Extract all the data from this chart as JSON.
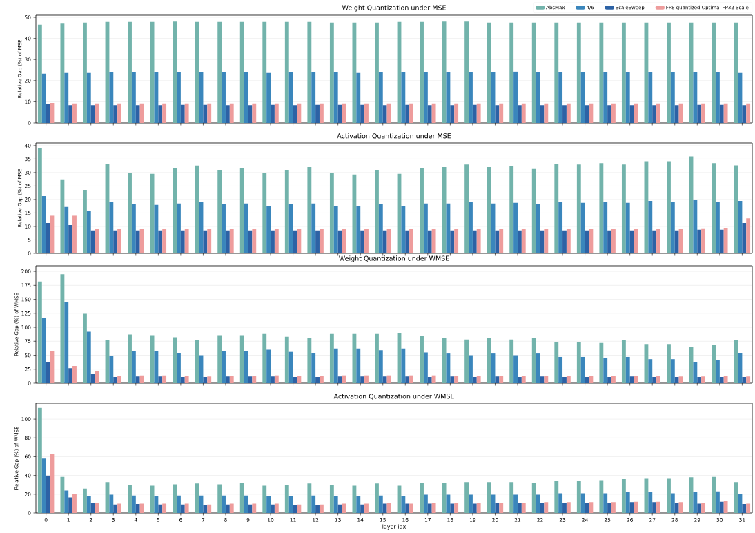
{
  "chart_data": [
    {
      "type": "bar",
      "title": "Weight Quantization under MSE",
      "ylabel": "Relative Gap (%) of MSE",
      "categories": [
        "0",
        "1",
        "2",
        "3",
        "4",
        "5",
        "6",
        "7",
        "8",
        "9",
        "10",
        "11",
        "12",
        "13",
        "14",
        "15",
        "16",
        "17",
        "18",
        "19",
        "20",
        "21",
        "22",
        "23",
        "24",
        "25",
        "26",
        "27",
        "28",
        "29",
        "30",
        "31"
      ],
      "ylim": [
        0,
        51
      ],
      "yticks": [
        0,
        10,
        20,
        30,
        40,
        50
      ],
      "grid": "y",
      "legend": "top right",
      "tick_labels": "y",
      "series": [
        {
          "name": "AbsMax",
          "color": "#72b3ab",
          "values": [
            46.5,
            47,
            47.5,
            47.8,
            47.8,
            47.8,
            48,
            47.8,
            47.8,
            47.8,
            47.8,
            47.8,
            47.8,
            47.5,
            47.5,
            47.5,
            47.8,
            47.8,
            48,
            48,
            47.5,
            47.5,
            47.5,
            47.5,
            47.5,
            47.5,
            47.5,
            47.5,
            47.5,
            47.5,
            47.5,
            47.5
          ]
        },
        {
          "name": "4/6",
          "color": "#3a86bc",
          "values": [
            23.3,
            23.6,
            23.6,
            24,
            24,
            24,
            24,
            24,
            24,
            24,
            23.6,
            24,
            24,
            24,
            23.6,
            24,
            24,
            24,
            24,
            24,
            24,
            24.3,
            24,
            24,
            24,
            24,
            24,
            24,
            24,
            24,
            24,
            23.6
          ]
        },
        {
          "name": "ScaleSweep",
          "color": "#2d62a5",
          "values": [
            9,
            8.4,
            8.4,
            8.4,
            8.4,
            8.4,
            8.6,
            8.6,
            8.4,
            8.4,
            8.6,
            8.4,
            8.6,
            8.6,
            8.6,
            8.4,
            8.6,
            8.4,
            8.4,
            8.6,
            8.4,
            8.4,
            8.4,
            8.4,
            8.4,
            8.4,
            8.4,
            8.4,
            8.4,
            8.6,
            8.6,
            8.4
          ]
        },
        {
          "name": "FP8 quantized Optimal FP32 Scale",
          "color": "#ee9c9c",
          "values": [
            9.5,
            9.2,
            9.2,
            9.2,
            9.2,
            9.2,
            9.2,
            9.2,
            9.2,
            9.2,
            9.2,
            9.2,
            9.2,
            9.2,
            9.2,
            9.2,
            9.2,
            9.2,
            9.2,
            9.2,
            9.2,
            9.2,
            9.2,
            9.2,
            9.2,
            9.2,
            9.2,
            9.2,
            9.2,
            9.2,
            9.2,
            9.2
          ]
        }
      ]
    },
    {
      "type": "bar",
      "title": "Activation Quantization under MSE",
      "ylabel": "Relative Gap (%) of MSE",
      "categories": [
        "0",
        "1",
        "2",
        "3",
        "4",
        "5",
        "6",
        "7",
        "8",
        "9",
        "10",
        "11",
        "12",
        "13",
        "14",
        "15",
        "16",
        "17",
        "18",
        "19",
        "20",
        "21",
        "22",
        "23",
        "24",
        "25",
        "26",
        "27",
        "28",
        "29",
        "30",
        "31"
      ],
      "ylim": [
        0,
        41
      ],
      "yticks": [
        0,
        5,
        10,
        15,
        20,
        25,
        30,
        35,
        40
      ],
      "grid": "y",
      "tick_labels": "y",
      "series": [
        {
          "color": "#72b3ab",
          "values": [
            39,
            27.5,
            23.6,
            33.1,
            30,
            29.5,
            31.5,
            32.6,
            31,
            31.8,
            29.8,
            31,
            32,
            30,
            29.3,
            31,
            29.5,
            31.5,
            32,
            33,
            32,
            32.5,
            31.3,
            33.2,
            33,
            33.5,
            33,
            34.2,
            34.2,
            36,
            33.5,
            32.7
          ]
        },
        {
          "color": "#3a86bc",
          "values": [
            21.3,
            17.2,
            15.9,
            19.2,
            18.2,
            18,
            18.5,
            19,
            18.2,
            18.5,
            17.7,
            18.2,
            18.5,
            17.7,
            17.4,
            18.2,
            17.4,
            18.5,
            18.5,
            19,
            18.5,
            18.8,
            18.3,
            19,
            18.8,
            19,
            18.8,
            19.5,
            19.2,
            20,
            19.2,
            19.5
          ]
        },
        {
          "color": "#2d62a5",
          "values": [
            11.3,
            10.5,
            8.5,
            8.5,
            8.5,
            8.5,
            8.5,
            8.5,
            8.5,
            8.5,
            8.5,
            8.5,
            8.5,
            8.5,
            8.5,
            8.5,
            8.5,
            8.5,
            8.5,
            8.5,
            8.5,
            8.5,
            8.5,
            8.5,
            8.5,
            8.5,
            8.5,
            8.5,
            8.5,
            8.8,
            8.8,
            11.3
          ]
        },
        {
          "color": "#ee9c9c",
          "values": [
            14,
            14,
            9,
            9,
            9,
            9,
            9,
            9,
            9,
            9,
            9,
            9,
            9,
            9,
            9,
            9,
            9,
            9,
            9,
            9,
            9,
            9,
            9,
            9,
            9,
            9,
            9,
            9.2,
            9,
            9.3,
            9.5,
            13
          ]
        }
      ]
    },
    {
      "type": "bar",
      "title": "Weight Quantization under WMSE",
      "ylabel": "Relative Gap (%) of WMSE",
      "categories": [
        "0",
        "1",
        "2",
        "3",
        "4",
        "5",
        "6",
        "7",
        "8",
        "9",
        "10",
        "11",
        "12",
        "13",
        "14",
        "15",
        "16",
        "17",
        "18",
        "19",
        "20",
        "21",
        "22",
        "23",
        "24",
        "25",
        "26",
        "27",
        "28",
        "29",
        "30",
        "31"
      ],
      "ylim": [
        0,
        210
      ],
      "yticks": [
        0,
        25,
        50,
        75,
        100,
        125,
        150,
        175,
        200
      ],
      "grid": "y",
      "tick_labels": "y",
      "series": [
        {
          "color": "#72b3ab",
          "values": [
            182,
            195,
            124,
            77,
            87,
            86,
            82,
            77,
            86,
            86,
            88,
            83,
            81,
            88,
            88,
            88,
            90,
            85,
            81,
            78,
            81,
            78,
            81,
            74,
            74,
            72,
            77,
            70,
            70,
            65,
            69,
            77
          ]
        },
        {
          "color": "#3a86bc",
          "values": [
            117,
            145,
            92,
            49,
            58,
            58,
            54,
            50,
            58,
            57,
            60,
            56,
            54,
            62,
            62,
            59,
            62,
            55,
            53,
            50,
            53,
            50,
            53,
            47,
            47,
            45,
            47,
            43,
            43,
            38,
            42,
            54
          ]
        },
        {
          "color": "#2d62a5",
          "values": [
            38,
            27,
            16,
            11,
            12,
            12,
            11,
            11,
            12,
            12,
            12,
            11,
            11,
            12,
            12,
            12,
            12,
            11,
            12,
            11,
            12,
            11,
            12,
            11,
            11,
            11,
            12,
            11,
            11,
            11,
            11,
            11
          ]
        },
        {
          "color": "#ee9c9c",
          "values": [
            58,
            31,
            21,
            13,
            14,
            14,
            13,
            12,
            13,
            13,
            14,
            13,
            13,
            14,
            14,
            14,
            14,
            14,
            13,
            13,
            13,
            13,
            13,
            13,
            13,
            13,
            13,
            13,
            12,
            12,
            13,
            12
          ]
        }
      ]
    },
    {
      "type": "bar",
      "title": "Activation Quantization under WMSE",
      "xlabel": "layer idx",
      "ylabel": "Relative Gap (%) of WMSE",
      "categories": [
        "0",
        "1",
        "2",
        "3",
        "4",
        "5",
        "6",
        "7",
        "8",
        "9",
        "10",
        "11",
        "12",
        "13",
        "14",
        "15",
        "16",
        "17",
        "18",
        "19",
        "20",
        "21",
        "22",
        "23",
        "24",
        "25",
        "26",
        "27",
        "28",
        "29",
        "30",
        "31"
      ],
      "ylim": [
        0,
        117
      ],
      "yticks": [
        0,
        20,
        40,
        60,
        80,
        100
      ],
      "grid": "y",
      "series": [
        {
          "color": "#72b3ab",
          "values": [
            112,
            38.5,
            26,
            33,
            30,
            29,
            30.5,
            31.5,
            30.5,
            32,
            29,
            30,
            31.5,
            30,
            29,
            31.5,
            29,
            32,
            32,
            33,
            33,
            33,
            32,
            34.5,
            34.5,
            35,
            36,
            36.5,
            36.5,
            38,
            38.5,
            33
          ]
        },
        {
          "color": "#3a86bc",
          "values": [
            58,
            24,
            18,
            19.5,
            18.5,
            18,
            18.5,
            18.5,
            18.5,
            18.5,
            18,
            18,
            18.5,
            18,
            18,
            18.5,
            18,
            19.5,
            19.5,
            19.5,
            19.5,
            19.5,
            19.5,
            21,
            21,
            21,
            22,
            22,
            21,
            22,
            23,
            20
          ]
        },
        {
          "color": "#2d62a5",
          "values": [
            40,
            16.5,
            10.5,
            9,
            9.5,
            9,
            9,
            8.5,
            9,
            9,
            9,
            8.5,
            8.5,
            9,
            9,
            10,
            10,
            10,
            10,
            10,
            10.5,
            10.5,
            10.5,
            10.5,
            10.5,
            10.5,
            11.5,
            11.5,
            11,
            10,
            12,
            9.5
          ]
        },
        {
          "color": "#ee9c9c",
          "values": [
            63,
            20,
            11,
            10,
            10,
            10,
            10,
            9,
            10,
            10,
            10,
            9,
            9,
            10,
            10,
            11,
            10,
            11,
            11,
            11,
            11,
            11,
            11.5,
            11.5,
            11.5,
            11.5,
            12,
            12,
            11.5,
            11,
            13,
            10
          ]
        }
      ]
    }
  ]
}
